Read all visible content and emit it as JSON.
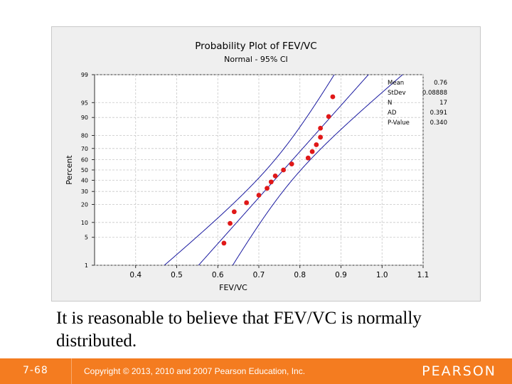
{
  "chart_data": {
    "type": "scatter",
    "title": "Probability Plot of FEV/VC",
    "subtitle": "Normal - 95% CI",
    "xlabel": "FEV/VC",
    "ylabel": "Percent",
    "xlim": [
      0.3,
      1.1
    ],
    "x_ticks": [
      "0.4",
      "0.5",
      "0.6",
      "0.7",
      "0.8",
      "0.9",
      "1.0",
      "1.1"
    ],
    "y_ticks": [
      "1",
      "5",
      "10",
      "20",
      "30",
      "40",
      "50",
      "60",
      "70",
      "80",
      "90",
      "95",
      "99"
    ],
    "y_scale": "normal-probability",
    "grid": true,
    "mean": 0.76,
    "stdev": 0.08888,
    "points": [
      {
        "x": 0.615,
        "y": 3.7
      },
      {
        "x": 0.63,
        "y": 9.6
      },
      {
        "x": 0.64,
        "y": 15.4
      },
      {
        "x": 0.67,
        "y": 21.2
      },
      {
        "x": 0.7,
        "y": 26.9
      },
      {
        "x": 0.72,
        "y": 32.7
      },
      {
        "x": 0.73,
        "y": 38.5
      },
      {
        "x": 0.74,
        "y": 44.2
      },
      {
        "x": 0.76,
        "y": 50.0
      },
      {
        "x": 0.78,
        "y": 55.8
      },
      {
        "x": 0.82,
        "y": 61.5
      },
      {
        "x": 0.83,
        "y": 67.3
      },
      {
        "x": 0.84,
        "y": 73.1
      },
      {
        "x": 0.85,
        "y": 78.8
      },
      {
        "x": 0.85,
        "y": 84.6
      },
      {
        "x": 0.87,
        "y": 90.4
      },
      {
        "x": 0.88,
        "y": 96.3
      }
    ],
    "point_color": "#e01818",
    "fit_line_color": "#1a1aa0",
    "ci_color": "#1a1aa0",
    "legend_position": "top-right"
  },
  "stats": [
    {
      "label": "Mean",
      "value": "0.76"
    },
    {
      "label": "StDev",
      "value": "0.08888"
    },
    {
      "label": "N",
      "value": "17"
    },
    {
      "label": "AD",
      "value": "0.391"
    },
    {
      "label": "P-Value",
      "value": "0.340"
    }
  ],
  "caption": "It is reasonable to believe that FEV/VC is normally distributed.",
  "footer": {
    "slide_number": "7-68",
    "copyright": "Copyright © 2013, 2010 and 2007 Pearson Education, Inc.",
    "brand": "PEARSON"
  },
  "colors": {
    "footer_bg": "#f47c20",
    "plot_bg": "#ffffff",
    "frame_bg": "#efefef"
  }
}
